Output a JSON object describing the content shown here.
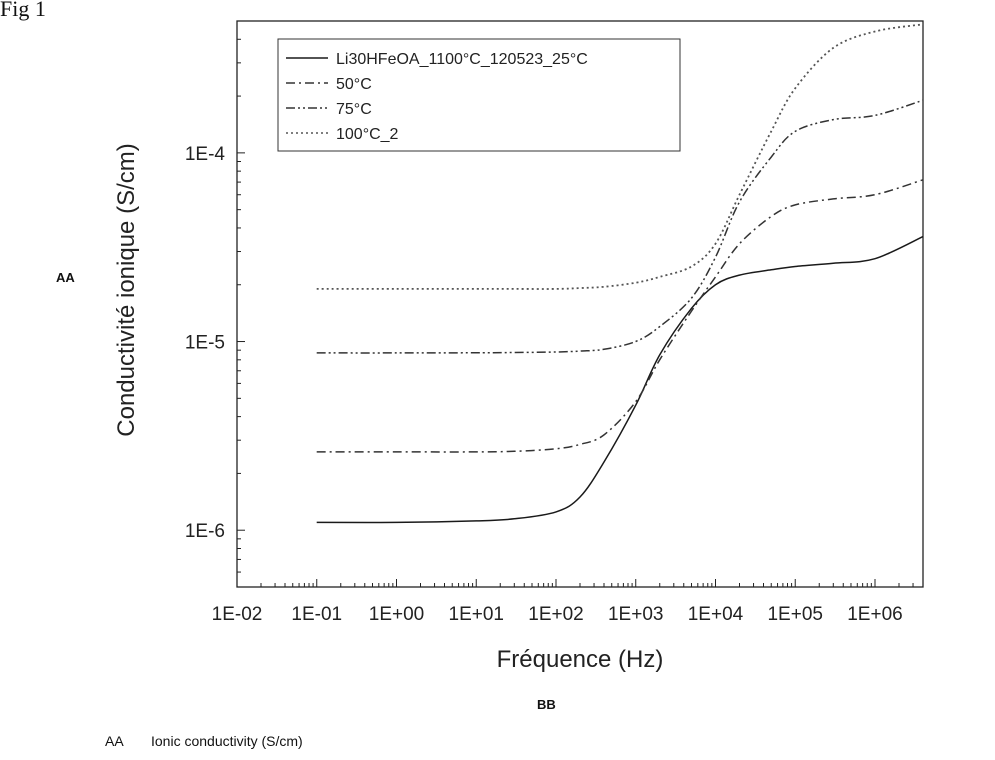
{
  "figure_label": "Fig 1",
  "markers": {
    "aa": "AA",
    "bb": "BB"
  },
  "footnote": {
    "key": "AA",
    "text": "Ionic conductivity (S/cm)"
  },
  "chart_data": {
    "type": "line",
    "xscale": "log",
    "yscale": "log",
    "xlim": [
      0.01,
      4000000
    ],
    "ylim": [
      5e-07,
      0.0005
    ],
    "xlabel": "Fréquence (Hz)",
    "ylabel": "Conductivité ionique (S/cm)",
    "x_ticks": [
      0.01,
      0.1,
      1,
      10,
      100,
      1000,
      10000,
      100000,
      1000000
    ],
    "x_tick_labels": [
      "1E-02",
      "1E-01",
      "1E+00",
      "1E+01",
      "1E+02",
      "1E+03",
      "1E+04",
      "1E+05",
      "1E+06"
    ],
    "y_ticks": [
      1e-06,
      1e-05,
      0.0001
    ],
    "y_tick_labels": [
      "1E-6",
      "1E-5",
      "1E-4"
    ],
    "legend_position": "top-left",
    "x": [
      0.1,
      1,
      10,
      30,
      100,
      200,
      400,
      1000,
      2000,
      5000,
      10000,
      20000,
      50000,
      100000,
      300000,
      1000000,
      4000000
    ],
    "series": [
      {
        "name": "Li30HFeOA_1100°C_120523_25°C",
        "style": "solid",
        "values": [
          1.1e-06,
          1.1e-06,
          1.12e-06,
          1.15e-06,
          1.25e-06,
          1.5e-06,
          2.3e-06,
          4.6e-06,
          8.5e-06,
          1.5e-05,
          2e-05,
          2.25e-05,
          2.4e-05,
          2.5e-05,
          2.6e-05,
          2.75e-05,
          3.6e-05
        ]
      },
      {
        "name": "50°C",
        "style": "dash-dot",
        "values": [
          2.6e-06,
          2.6e-06,
          2.6e-06,
          2.62e-06,
          2.7e-06,
          2.85e-06,
          3.2e-06,
          4.8e-06,
          8e-06,
          1.45e-05,
          2.2e-05,
          3.3e-05,
          4.6e-05,
          5.3e-05,
          5.7e-05,
          6e-05,
          7.2e-05
        ]
      },
      {
        "name": "75°C",
        "style": "dash-dot-dot",
        "values": [
          8.7e-06,
          8.7e-06,
          8.72e-06,
          8.75e-06,
          8.8e-06,
          8.9e-06,
          9.1e-06,
          1e-05,
          1.2e-05,
          1.7e-05,
          2.8e-05,
          5.5e-05,
          9.5e-05,
          0.00013,
          0.00015,
          0.000158,
          0.00019
        ]
      },
      {
        "name": "100°C_2",
        "style": "dotted",
        "values": [
          1.9e-05,
          1.9e-05,
          1.9e-05,
          1.9e-05,
          1.9e-05,
          1.92e-05,
          1.95e-05,
          2.05e-05,
          2.2e-05,
          2.5e-05,
          3.3e-05,
          6e-05,
          0.00013,
          0.00022,
          0.00036,
          0.00044,
          0.00048
        ]
      }
    ]
  }
}
